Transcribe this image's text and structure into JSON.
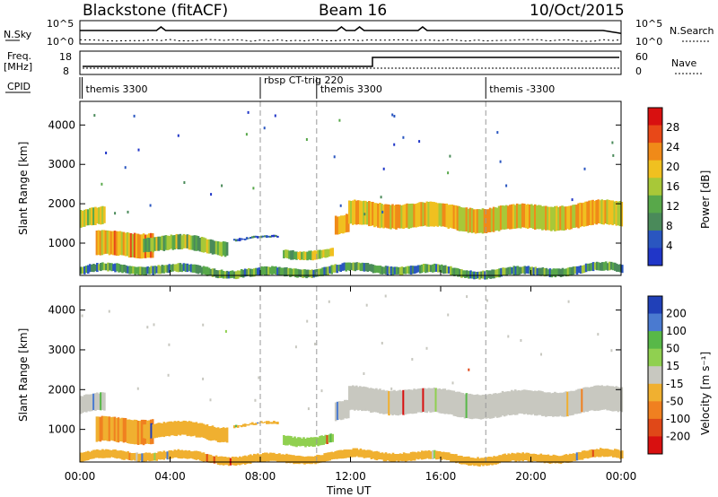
{
  "header": {
    "station": "Blackstone (fitACF)",
    "beam": "Beam 16",
    "date": "10/Oct/2015"
  },
  "side_labels": {
    "nsky": "N.Sky",
    "nsearch": "N.Search",
    "freq": "Freq.",
    "freq_unit": "[MHz]",
    "nave": "Nave",
    "cpid": "CPID"
  },
  "noise_ticks": {
    "left_top": "10^5",
    "left_bottom": "10^0",
    "right_top": "10^5",
    "right_bottom": "10^0"
  },
  "freq_ticks": {
    "left_top": "18",
    "left_bottom": "8",
    "right_top": "60",
    "right_bottom": "0"
  },
  "cpid_labels": [
    {
      "text": "themis 3300",
      "start": 0.1
    },
    {
      "text": "rbsp CT-trig 220",
      "start": 8.0
    },
    {
      "text": "themis 3300",
      "start": 10.5
    },
    {
      "text": "themis -3300",
      "start": 18.0
    }
  ],
  "colors": {
    "power": [
      "#2036c8",
      "#2a56c0",
      "#4a8a5a",
      "#58a84a",
      "#a8c838",
      "#f0c020",
      "#f08a18",
      "#e84818",
      "#d81010"
    ],
    "velocity": [
      "#2040b8",
      "#4a7ad0",
      "#58b848",
      "#90d050",
      "#c8c8c0",
      "#f0b030",
      "#f08020",
      "#e04818",
      "#d81010"
    ]
  },
  "chart_data": [
    {
      "type": "heatmap",
      "panel": "power",
      "ylabel": "Slant Range [km]",
      "ylim": [
        180,
        4600
      ],
      "xlim": [
        0,
        24
      ],
      "yticks": [
        "1000",
        "2000",
        "3000",
        "4000"
      ],
      "colorbar": {
        "label": "Power [dB]",
        "ticks": [
          "4",
          "8",
          "12",
          "16",
          "20",
          "24",
          "28"
        ],
        "range": [
          0,
          32
        ]
      },
      "bands": [
        {
          "x": [
            0.0,
            1.1
          ],
          "range_low": 1380,
          "range_high": 1850,
          "level": 18
        },
        {
          "x": [
            0.7,
            3.2
          ],
          "range_low": 600,
          "range_high": 1250,
          "level": 22
        },
        {
          "x": [
            2.8,
            6.5
          ],
          "range_low": 750,
          "range_high": 1150,
          "level": 14
        },
        {
          "x": [
            6.8,
            8.8
          ],
          "range_low": 1130,
          "range_high": 1220,
          "level": 4
        },
        {
          "x": [
            9.0,
            11.2
          ],
          "range_low": 620,
          "range_high": 880,
          "level": 14
        },
        {
          "x": [
            11.3,
            11.9
          ],
          "range_low": 1150,
          "range_high": 1650,
          "level": 20
        },
        {
          "x": [
            11.9,
            24.0
          ],
          "range_low": 1350,
          "range_high": 2000,
          "level": 20
        },
        {
          "x": [
            0.0,
            24.0
          ],
          "range_low": 180,
          "range_high": 420,
          "level": 10
        }
      ]
    },
    {
      "type": "heatmap",
      "panel": "velocity",
      "ylabel": "Slant Range [km]",
      "xlabel": "Time UT",
      "ylim": [
        180,
        4600
      ],
      "xlim": [
        0,
        24
      ],
      "yticks": [
        "1000",
        "2000",
        "3000",
        "4000"
      ],
      "xticks": [
        "00:00",
        "04:00",
        "08:00",
        "12:00",
        "16:00",
        "20:00",
        "00:00"
      ],
      "colorbar": {
        "label": "Velocity [m s⁻¹]",
        "ticks": [
          "200",
          "100",
          "50",
          "15",
          "-15",
          "-50",
          "-100",
          "-200"
        ]
      },
      "bands": [
        {
          "x": [
            0.0,
            1.1
          ],
          "range_low": 1380,
          "range_high": 1850,
          "velocity": 0
        },
        {
          "x": [
            0.7,
            3.2
          ],
          "range_low": 600,
          "range_high": 1250,
          "velocity": -70
        },
        {
          "x": [
            2.8,
            6.5
          ],
          "range_low": 750,
          "range_high": 1150,
          "velocity": -50
        },
        {
          "x": [
            6.8,
            8.8
          ],
          "range_low": 1130,
          "range_high": 1220,
          "velocity": -50
        },
        {
          "x": [
            9.0,
            11.2
          ],
          "range_low": 620,
          "range_high": 880,
          "velocity": 30
        },
        {
          "x": [
            11.3,
            11.9
          ],
          "range_low": 1150,
          "range_high": 1650,
          "velocity": 0
        },
        {
          "x": [
            11.9,
            24.0
          ],
          "range_low": 1350,
          "range_high": 2000,
          "velocity": 0
        },
        {
          "x": [
            0.0,
            24.0
          ],
          "range_low": 180,
          "range_high": 420,
          "velocity": -40
        }
      ]
    }
  ]
}
